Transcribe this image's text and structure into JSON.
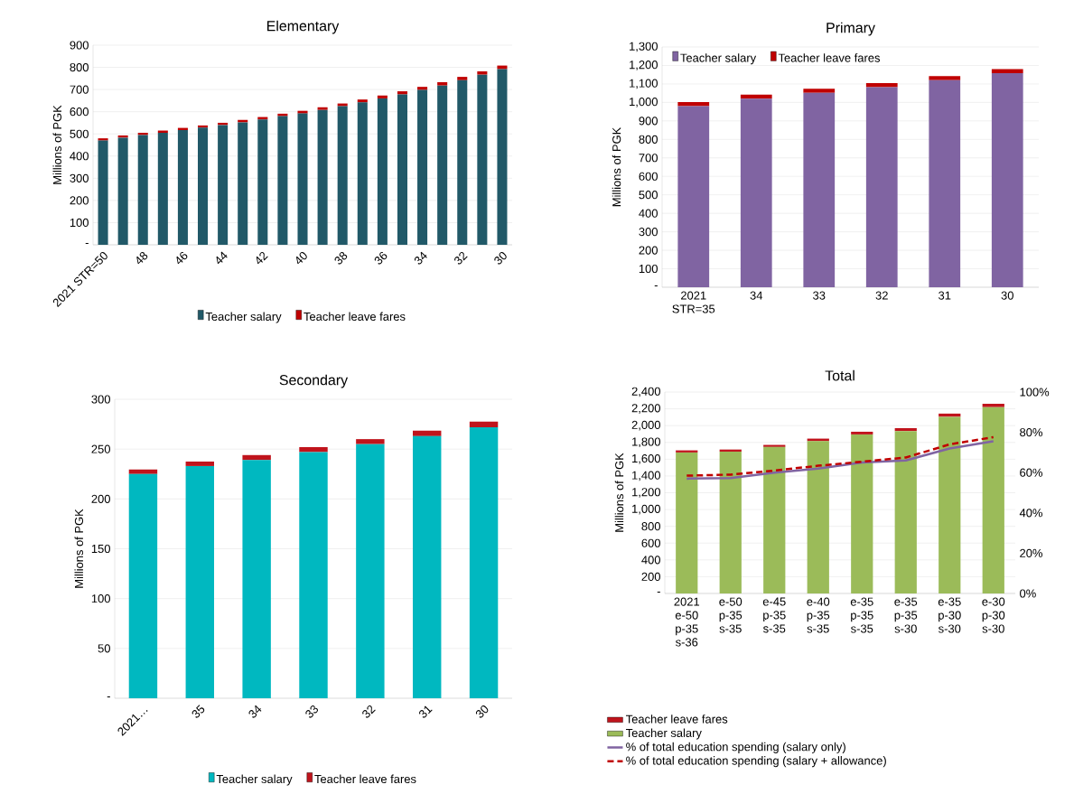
{
  "chart_data": [
    {
      "type": "bar",
      "title": "Elementary",
      "ylabel": "Millions of PGK",
      "stacked": true,
      "grid": "y",
      "legend": "bottom",
      "categories": [
        "2021 STR=50",
        null,
        "48",
        null,
        "46",
        null,
        "44",
        null,
        "42",
        null,
        "40",
        null,
        "38",
        null,
        "36",
        null,
        "34",
        null,
        "32",
        null,
        "30"
      ],
      "ylim": [
        0,
        900
      ],
      "yticks": [
        {
          "value": 0,
          "label": "-"
        },
        100,
        200,
        300,
        400,
        500,
        600,
        700,
        800,
        900
      ],
      "series": [
        {
          "name": "Teacher salary",
          "color": "#215968",
          "values": [
            470,
            483,
            495,
            505,
            517,
            528,
            540,
            552,
            565,
            580,
            592,
            608,
            625,
            642,
            660,
            678,
            698,
            718,
            742,
            767,
            792
          ]
        },
        {
          "name": "Teacher leave fares",
          "color": "#c00000",
          "values": [
            10,
            10,
            10,
            10,
            10,
            10,
            10,
            11,
            11,
            11,
            12,
            12,
            12,
            13,
            13,
            14,
            14,
            15,
            15,
            15,
            16
          ]
        }
      ]
    },
    {
      "type": "bar",
      "title": "Primary",
      "ylabel": "Millions of PGK",
      "stacked": true,
      "grid": "y",
      "legend": "top left",
      "categories": [
        "2021 STR=35",
        "34",
        "33",
        "32",
        "31",
        "30"
      ],
      "ylim": [
        0,
        1300
      ],
      "yticks": [
        {
          "value": 0,
          "label": "-"
        },
        100,
        200,
        300,
        400,
        500,
        600,
        700,
        800,
        900,
        {
          "value": 1000,
          "label": "1,000"
        },
        {
          "value": 1100,
          "label": "1,100"
        },
        {
          "value": 1200,
          "label": "1,200"
        },
        {
          "value": 1300,
          "label": "1,300"
        }
      ],
      "series": [
        {
          "name": "Teacher salary",
          "color": "#8064a2",
          "values": [
            980,
            1020,
            1052,
            1083,
            1120,
            1158
          ]
        },
        {
          "name": "Teacher leave fares",
          "color": "#c00000",
          "values": [
            22,
            22,
            22,
            22,
            22,
            22
          ]
        }
      ]
    },
    {
      "type": "bar",
      "title": "Secondary",
      "ylabel": "Millions of PGK",
      "stacked": true,
      "grid": "y",
      "legend": "bottom",
      "categories": [
        "2021…",
        "35",
        "34",
        "33",
        "32",
        "31",
        "30"
      ],
      "ylim": [
        0,
        300
      ],
      "yticks": [
        {
          "value": 0,
          "label": "-"
        },
        50,
        100,
        150,
        200,
        250,
        300
      ],
      "series": [
        {
          "name": "Teacher salary",
          "color": "#00b8c0",
          "values": [
            225,
            233,
            239,
            247,
            255,
            263,
            272
          ]
        },
        {
          "name": "Teacher leave fares",
          "color": "#c0141c",
          "values": [
            4.5,
            4.5,
            5,
            5,
            5,
            5.5,
            5.5
          ]
        }
      ]
    },
    {
      "type": "bar",
      "title": "Total",
      "ylabel": "Millions of PGK",
      "stacked": true,
      "grid": "y",
      "legend": "bottom",
      "categories": [
        "2021 e-50 p-35 s-36",
        "e-50 p-35 s-35",
        "e-45 p-35 s-35",
        "e-40 p-35 s-35",
        "e-35 p-35 s-35",
        "e-35 p-35 s-30",
        "e-35 p-30 s-30",
        "e-30 p-30 s-30"
      ],
      "ylim": [
        0,
        2400
      ],
      "yticks": [
        {
          "value": 0,
          "label": "-"
        },
        200,
        400,
        600,
        800,
        {
          "value": 1000,
          "label": "1,000"
        },
        {
          "value": 1200,
          "label": "1,200"
        },
        {
          "value": 1400,
          "label": "1,400"
        },
        {
          "value": 1600,
          "label": "1,600"
        },
        {
          "value": 1800,
          "label": "1,800"
        },
        {
          "value": 2000,
          "label": "2,000"
        },
        {
          "value": 2200,
          "label": "2,200"
        },
        {
          "value": 2400,
          "label": "2,400"
        }
      ],
      "y2lim": [
        0,
        100
      ],
      "y2ticks": [
        {
          "value": 0,
          "label": "0%"
        },
        {
          "value": 20,
          "label": "20%"
        },
        {
          "value": 40,
          "label": "40%"
        },
        {
          "value": 60,
          "label": "60%"
        },
        {
          "value": 80,
          "label": "80%"
        },
        {
          "value": 100,
          "label": "100%"
        }
      ],
      "series": [
        {
          "name": "Teacher salary",
          "color": "#9bbb59",
          "values": [
            1680,
            1690,
            1745,
            1815,
            1895,
            1935,
            2105,
            2220
          ]
        },
        {
          "name": "Teacher leave fares",
          "color": "#c0141c",
          "values": [
            25,
            25,
            25,
            30,
            32,
            35,
            38,
            40
          ]
        },
        {
          "name": "% of total education spending (salary only)",
          "type": "line",
          "axis": "y2",
          "line_style": "solid",
          "color": "#8064a2",
          "values": [
            57,
            57.3,
            60,
            62,
            65,
            66,
            72,
            75.6
          ]
        },
        {
          "name": "% of total education spending (salary + allowance)",
          "type": "line",
          "axis": "y2",
          "line_style": "dashed",
          "color": "#c00000",
          "values": [
            58.5,
            59,
            61,
            63.4,
            65.4,
            67.5,
            74,
            77.6
          ]
        }
      ]
    }
  ]
}
